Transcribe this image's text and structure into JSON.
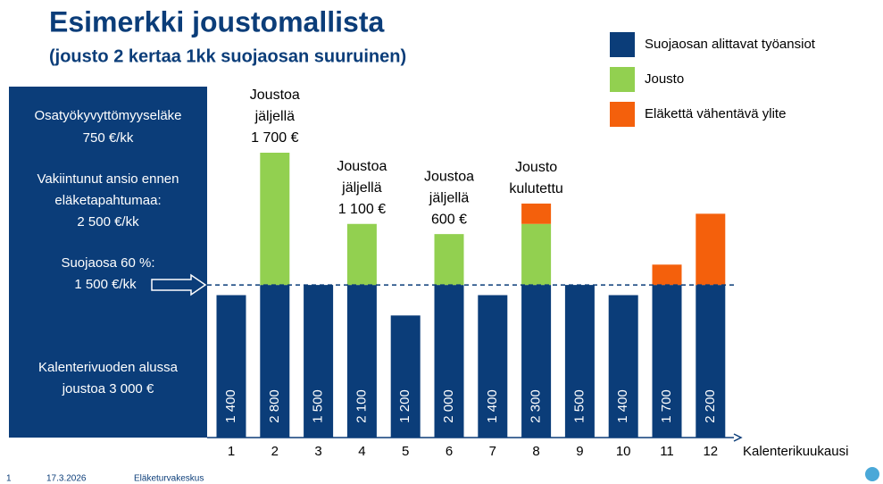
{
  "chart_data": {
    "type": "stacked_bar",
    "title": "Esimerkki joustomallista",
    "subtitle": "(jousto 2 kertaa 1kk suojaosan suuruinen)",
    "x_label": "Kalenterikuukausi",
    "categories": [
      "1",
      "2",
      "3",
      "4",
      "5",
      "6",
      "7",
      "8",
      "9",
      "10",
      "11",
      "12"
    ],
    "series": [
      {
        "name": "Suojaosan alittavat työansiot",
        "color": "#0b3d79",
        "values": [
          1400,
          1500,
          1500,
          1500,
          1200,
          1500,
          1400,
          1500,
          1500,
          1400,
          1500,
          1500
        ]
      },
      {
        "name": "Jousto",
        "color": "#92d050",
        "values": [
          null,
          1300,
          null,
          600,
          null,
          500,
          null,
          600,
          null,
          null,
          null,
          null
        ]
      },
      {
        "name": "Eläkettä vähentävä ylite",
        "color": "#f4600c",
        "values": [
          null,
          null,
          null,
          null,
          null,
          null,
          null,
          200,
          null,
          null,
          200,
          700
        ]
      }
    ],
    "total_labels": [
      "1 400",
      "2 800",
      "1 500",
      "2 100",
      "1 200",
      "2 000",
      "1 400",
      "2 300",
      "1 500",
      "1 400",
      "1 700",
      "2 200"
    ],
    "threshold": 1500,
    "ylim": [
      0,
      2800
    ],
    "annotations": [
      {
        "index": 1,
        "lines": [
          "Joustoa",
          "jäljellä",
          "1 700 €"
        ]
      },
      {
        "index": 3,
        "lines": [
          "Joustoa",
          "jäljellä",
          "1 100 €"
        ]
      },
      {
        "index": 5,
        "lines": [
          "Joustoa",
          "jäljellä",
          "600 €"
        ]
      },
      {
        "index": 7,
        "lines": [
          "Jousto",
          "kulutettu"
        ]
      }
    ]
  },
  "panel": {
    "lines": [
      "Osatyökyvyttömyyseläke",
      "750 €/kk",
      "Vakiintunut ansio ennen",
      "eläketapahtumaa:",
      "2 500 €/kk",
      "Suojaosa 60 %:",
      "1 500 €/kk",
      "Kalenterivuoden alussa",
      "joustoa 3 000 €"
    ]
  },
  "footer": {
    "page": "1",
    "date": "17.3.2026",
    "org": "Eläketurvakeskus"
  }
}
